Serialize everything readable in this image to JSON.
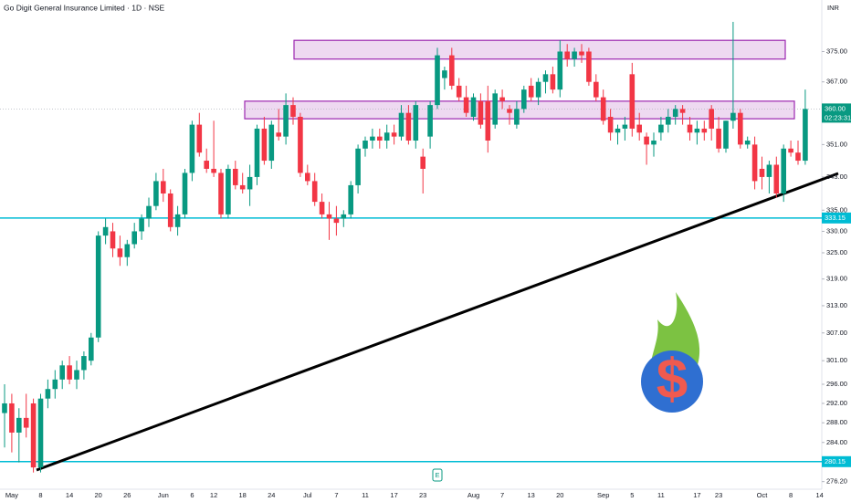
{
  "chart_data": {
    "type": "candlestick",
    "title": "Go Digit General Insurance Limited · 1D · NSE",
    "currency": "INR",
    "categories": [
      null,
      "May",
      null,
      null,
      null,
      "8",
      null,
      null,
      null,
      "14",
      null,
      null,
      null,
      "20",
      null,
      null,
      null,
      "26",
      null,
      null,
      null,
      null,
      "Jun",
      null,
      null,
      null,
      "6",
      null,
      null,
      "12",
      null,
      null,
      null,
      "18",
      null,
      null,
      null,
      "24",
      null,
      null,
      null,
      null,
      "Jul",
      null,
      null,
      null,
      "7",
      null,
      null,
      null,
      "11",
      null,
      null,
      null,
      "17",
      null,
      null,
      null,
      "23",
      null,
      null,
      null,
      null,
      null,
      null,
      "Aug",
      null,
      null,
      null,
      "7",
      null,
      null,
      null,
      "13",
      null,
      null,
      null,
      "20",
      null,
      null,
      null,
      null,
      null,
      "Sep",
      null,
      null,
      null,
      "5",
      null,
      null,
      null,
      "11",
      null,
      null,
      null,
      null,
      "17",
      null,
      null,
      "23",
      null,
      null,
      null,
      null,
      null,
      "Oct",
      null,
      null,
      null,
      "8",
      null,
      null,
      null,
      "14"
    ],
    "open": [
      290,
      292,
      286,
      289,
      292,
      279,
      293,
      295,
      297,
      300,
      297,
      299,
      301,
      306,
      329,
      330,
      326,
      324,
      327,
      330,
      333,
      336,
      342,
      339,
      331,
      334,
      344,
      356,
      347,
      345,
      344,
      334,
      345,
      341,
      340,
      343,
      355,
      347,
      354,
      353,
      361,
      358,
      344,
      342,
      337,
      334,
      333,
      333,
      334,
      341,
      350,
      352,
      353,
      352,
      354,
      353,
      359,
      352,
      348,
      353,
      361,
      368,
      374,
      366,
      363,
      358,
      362,
      362,
      356,
      363,
      360,
      356,
      360,
      366,
      363,
      367,
      369,
      365,
      375,
      373,
      375,
      375,
      367,
      363,
      358,
      354,
      355,
      369,
      356,
      353,
      351,
      354,
      356,
      358,
      360,
      356,
      354,
      355,
      360,
      355,
      350,
      357,
      359,
      351,
      351,
      345,
      343,
      346,
      339,
      350,
      349,
      347,
      null,
      null
    ],
    "high": [
      296,
      294,
      291,
      294,
      293,
      294,
      297,
      299,
      301,
      302,
      301,
      303,
      307,
      330,
      333,
      332,
      329,
      328,
      332,
      334,
      338,
      344,
      345,
      340,
      336,
      345,
      357,
      359,
      350,
      357,
      345,
      346,
      347,
      344,
      346,
      356,
      358,
      357,
      360,
      364,
      363,
      359,
      346,
      344,
      339,
      337,
      336,
      335,
      342,
      351,
      353,
      355,
      355,
      356,
      356,
      361,
      361,
      362,
      350,
      362,
      376,
      371,
      376,
      368,
      366,
      364,
      364,
      366,
      365,
      365,
      361,
      362,
      366,
      368,
      368,
      370,
      371,
      378,
      377,
      376,
      377,
      376,
      369,
      365,
      360,
      356,
      358,
      372,
      359,
      354,
      354,
      358,
      360,
      361,
      361,
      358,
      357,
      357,
      361,
      358,
      357,
      383,
      360,
      353,
      353,
      348,
      347,
      348,
      351,
      352,
      352,
      365,
      null,
      null
    ],
    "low": [
      283,
      282,
      280,
      285,
      278,
      278,
      291,
      293,
      295,
      296,
      295,
      297,
      300,
      305,
      327,
      324,
      322,
      322,
      326,
      328,
      331,
      335,
      337,
      330,
      329,
      333,
      342,
      348,
      344,
      343,
      333,
      333,
      340,
      339,
      336,
      341,
      346,
      345,
      352,
      351,
      356,
      343,
      341,
      336,
      333,
      328,
      329,
      331,
      333,
      339,
      348,
      350,
      350,
      350,
      351,
      352,
      351,
      350,
      339,
      350,
      360,
      365,
      365,
      362,
      358,
      357,
      355,
      349,
      355,
      360,
      356,
      355,
      359,
      362,
      361,
      364,
      364,
      363,
      371,
      371,
      372,
      366,
      362,
      356,
      352,
      351,
      352,
      353,
      352,
      346,
      348,
      352,
      354,
      356,
      356,
      352,
      351,
      352,
      352,
      349,
      349,
      355,
      350,
      350,
      340,
      340,
      339,
      338,
      337,
      348,
      346,
      346,
      null,
      null
    ],
    "close": [
      292,
      286,
      289,
      287,
      279,
      293,
      295,
      297,
      300,
      297,
      299,
      302,
      306,
      329,
      331,
      326,
      324,
      327,
      330,
      333,
      336,
      342,
      339,
      331,
      334,
      344,
      356,
      349,
      345,
      344,
      334,
      345,
      341,
      340,
      343,
      355,
      347,
      356,
      353,
      361,
      358,
      344,
      342,
      337,
      334,
      333,
      332,
      334,
      341,
      350,
      352,
      353,
      352,
      354,
      353,
      359,
      352,
      361,
      345,
      361,
      374,
      370,
      366,
      363,
      359,
      363,
      356,
      352,
      364,
      362,
      359,
      360,
      365,
      363,
      367,
      369,
      365,
      375,
      373,
      375,
      374,
      367,
      363,
      357,
      354,
      355,
      356,
      355,
      354,
      351,
      352,
      356,
      358,
      360,
      359,
      354,
      355,
      354,
      355,
      350,
      357,
      359,
      351,
      352,
      342,
      343,
      346,
      339,
      350,
      349,
      347,
      360,
      null,
      null
    ],
    "up_color": "#089981",
    "down_color": "#f23645",
    "ylim": [
      274,
      389
    ],
    "log_scale": true,
    "yticks": [
      {
        "value": 375,
        "label": "375.00"
      },
      {
        "value": 367,
        "label": "367.00"
      },
      {
        "value": 351,
        "label": "351.00"
      },
      {
        "value": 343,
        "label": "343.00"
      },
      {
        "value": 335,
        "label": "335.00"
      },
      {
        "value": 330,
        "label": "330.00"
      },
      {
        "value": 325,
        "label": "325.00"
      },
      {
        "value": 319,
        "label": "319.00"
      },
      {
        "value": 313,
        "label": "313.00"
      },
      {
        "value": 307,
        "label": "307.00"
      },
      {
        "value": 301,
        "label": "301.00"
      },
      {
        "value": 296,
        "label": "296.00"
      },
      {
        "value": 292,
        "label": "292.00"
      },
      {
        "value": 288,
        "label": "288.00"
      },
      {
        "value": 284,
        "label": "284.00"
      },
      {
        "value": 276.2,
        "label": "276.20"
      }
    ],
    "last_price": {
      "value": 360,
      "label": "360.00"
    },
    "countdown": "02:23:31",
    "horizontal_lines": [
      {
        "value": 333.15,
        "color": "#00bcd4"
      },
      {
        "value": 280.15,
        "color": "#00bcd4"
      }
    ],
    "zones": [
      {
        "low": 373,
        "high": 378
      },
      {
        "low": 357.5,
        "high": 362
      }
    ],
    "earnings_marker": "E"
  }
}
